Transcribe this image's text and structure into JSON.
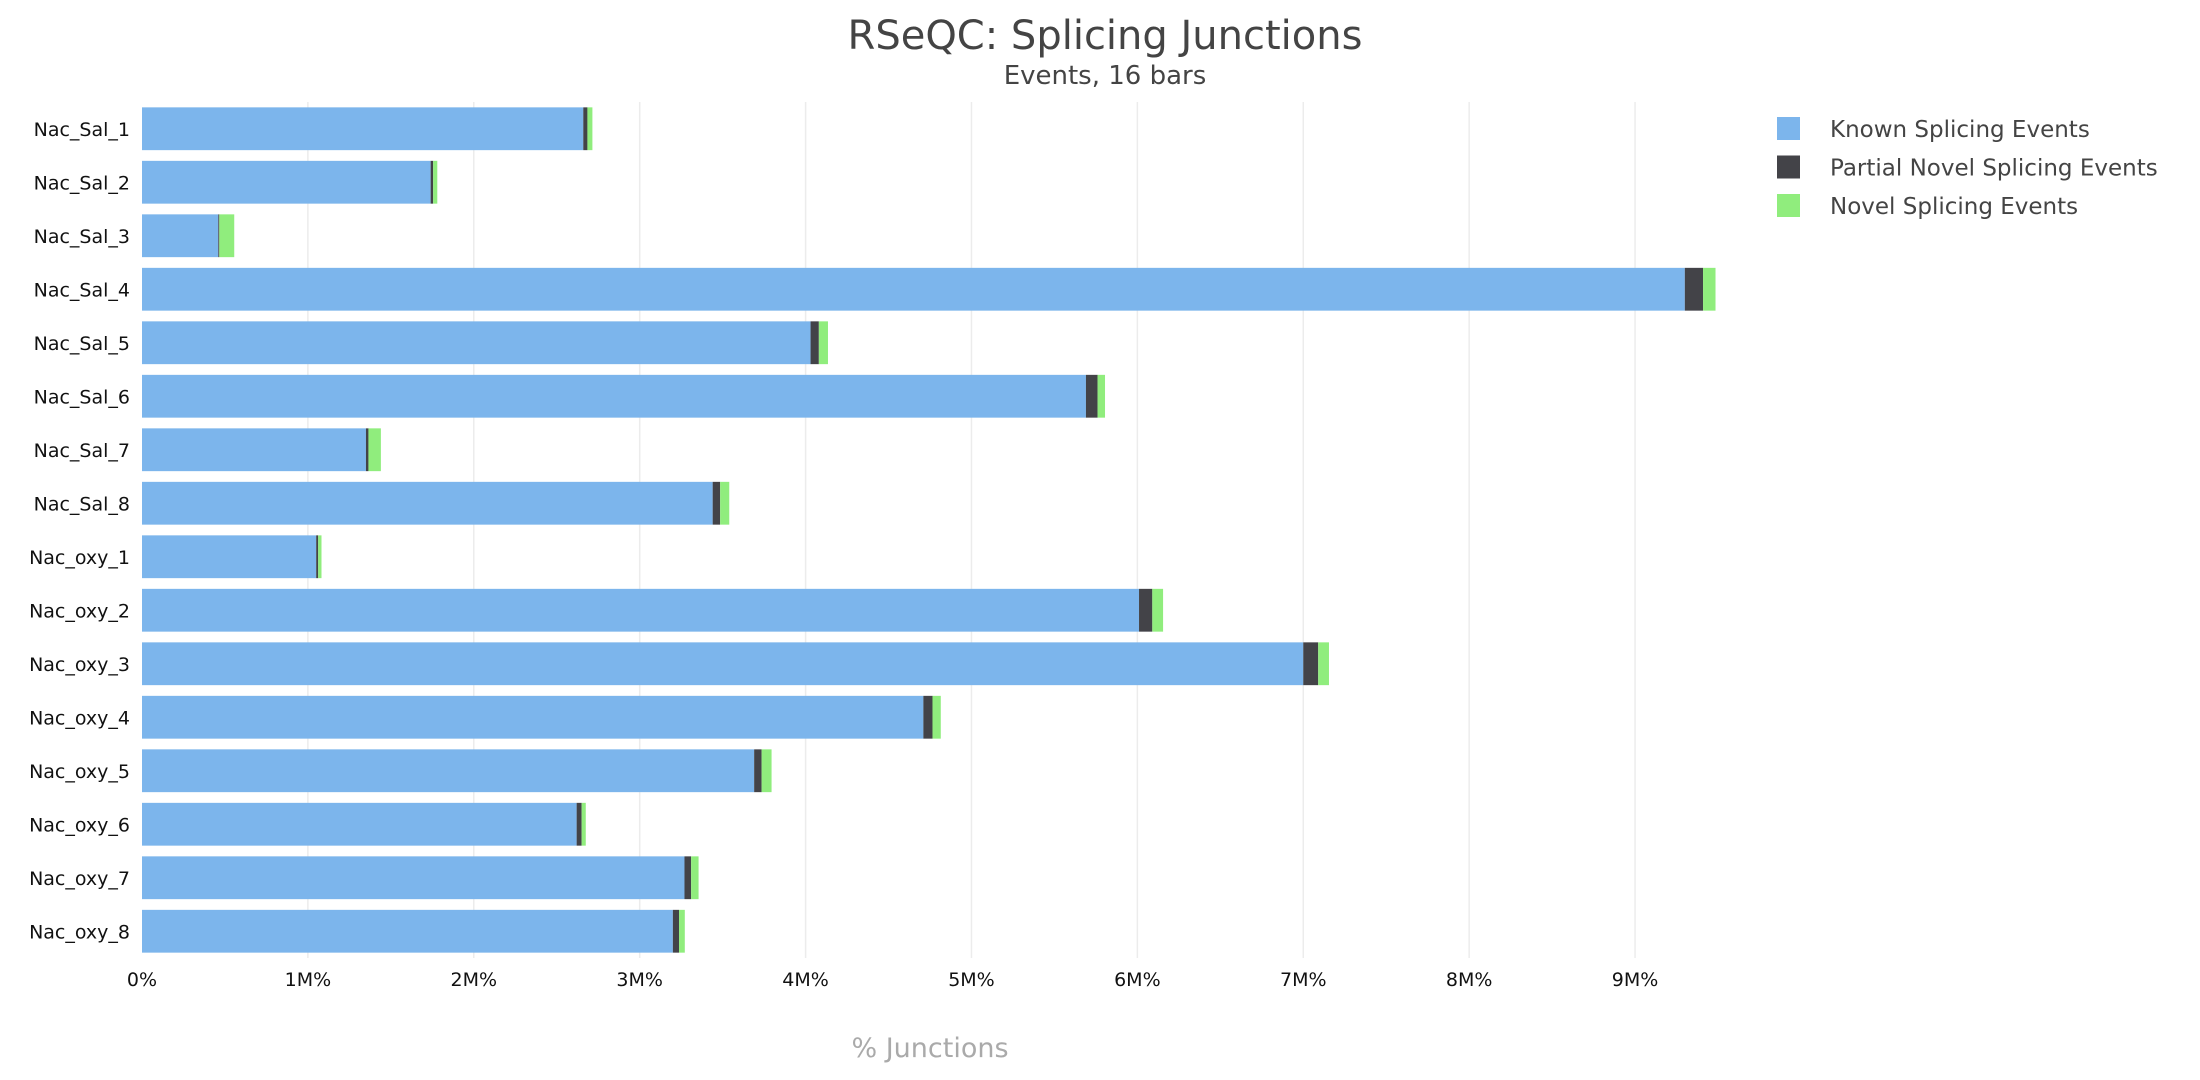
{
  "chart_data": {
    "type": "bar",
    "orientation": "horizontal",
    "stacked": true,
    "title": "RSeQC: Splicing Junctions",
    "subtitle": "Events, 16 bars",
    "xlabel": "% Junctions",
    "ylabel": "",
    "xlim": [
      0,
      9500000
    ],
    "x_ticks": [
      0,
      1000000,
      2000000,
      3000000,
      4000000,
      5000000,
      6000000,
      7000000,
      8000000,
      9000000
    ],
    "x_tick_labels": [
      "0%",
      "1M%",
      "2M%",
      "3M%",
      "4M%",
      "5M%",
      "6M%",
      "7M%",
      "8M%",
      "9M%"
    ],
    "grid": true,
    "legend_position": "top-right",
    "categories": [
      "Nac_Sal_1",
      "Nac_Sal_2",
      "Nac_Sal_3",
      "Nac_Sal_4",
      "Nac_Sal_5",
      "Nac_Sal_6",
      "Nac_Sal_7",
      "Nac_Sal_8",
      "Nac_oxy_1",
      "Nac_oxy_2",
      "Nac_oxy_3",
      "Nac_oxy_4",
      "Nac_oxy_5",
      "Nac_oxy_6",
      "Nac_oxy_7",
      "Nac_oxy_8"
    ],
    "series": [
      {
        "name": "Known Splicing Events",
        "color": "#7cb5ec",
        "values": [
          2660000,
          1740000,
          460000,
          9300000,
          4030000,
          5690000,
          1350000,
          3440000,
          1050000,
          6010000,
          7000000,
          4710000,
          3690000,
          2620000,
          3270000,
          3200000
        ]
      },
      {
        "name": "Partial Novel Splicing Events",
        "color": "#434348",
        "values": [
          25000,
          15000,
          6000,
          110000,
          50000,
          70000,
          15000,
          45000,
          12000,
          80000,
          90000,
          55000,
          45000,
          30000,
          40000,
          37000
        ]
      },
      {
        "name": "Novel Splicing Events",
        "color": "#90ed7d",
        "values": [
          30000,
          25000,
          90000,
          75000,
          55000,
          45000,
          75000,
          55000,
          20000,
          65000,
          65000,
          50000,
          60000,
          25000,
          45000,
          35000
        ]
      }
    ]
  }
}
